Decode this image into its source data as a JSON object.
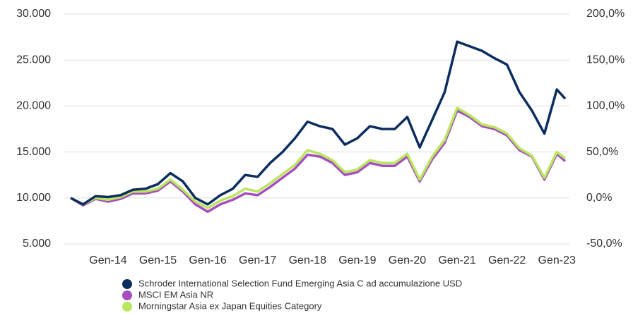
{
  "chart_data": {
    "type": "line",
    "x": [
      "2013-04",
      "2013-07",
      "2013-10",
      "2014-01",
      "2014-04",
      "2014-07",
      "2014-10",
      "2015-01",
      "2015-04",
      "2015-07",
      "2015-10",
      "2016-01",
      "2016-04",
      "2016-07",
      "2016-10",
      "2017-01",
      "2017-04",
      "2017-07",
      "2017-10",
      "2018-01",
      "2018-04",
      "2018-07",
      "2018-10",
      "2019-01",
      "2019-04",
      "2019-07",
      "2019-10",
      "2020-01",
      "2020-04",
      "2020-07",
      "2020-10",
      "2021-01",
      "2021-04",
      "2021-07",
      "2021-10",
      "2022-01",
      "2022-04",
      "2022-07",
      "2022-10",
      "2023-01",
      "2023-03"
    ],
    "series": [
      {
        "name": "Schroder International Selection Fund Emerging Asia C ad accumulazione USD",
        "color": "#0b2d5e",
        "values": [
          10000,
          9300,
          10200,
          10100,
          10300,
          10900,
          11000,
          11500,
          12700,
          11800,
          10000,
          9300,
          10300,
          11000,
          12500,
          12300,
          13800,
          15000,
          16500,
          18300,
          17800,
          17500,
          15800,
          16500,
          17800,
          17500,
          17500,
          18800,
          15500,
          18500,
          21500,
          27000,
          26500,
          26000,
          25200,
          24500,
          21500,
          19500,
          17000,
          21800,
          20800
        ]
      },
      {
        "name": "MSCI EM Asia NR",
        "color": "#a64ec0",
        "values": [
          10000,
          9200,
          9900,
          9600,
          9900,
          10500,
          10500,
          10800,
          11800,
          10700,
          9300,
          8500,
          9300,
          9800,
          10500,
          10300,
          11200,
          12200,
          13200,
          14700,
          14500,
          13800,
          12500,
          12800,
          13800,
          13500,
          13500,
          14500,
          11800,
          14200,
          16000,
          19500,
          18800,
          17800,
          17500,
          16800,
          15200,
          14500,
          12000,
          14800,
          14000
        ]
      },
      {
        "name": "Morningstar Asia ex Japan Equities Category",
        "color": "#b9e65c",
        "values": [
          10000,
          9300,
          10000,
          9800,
          10100,
          10700,
          10700,
          11000,
          12000,
          10900,
          9600,
          8900,
          9700,
          10200,
          11000,
          10700,
          11600,
          12600,
          13600,
          15200,
          14800,
          14100,
          12800,
          13100,
          14100,
          13800,
          13800,
          14800,
          12000,
          14500,
          16300,
          19800,
          19000,
          18000,
          17700,
          17000,
          15400,
          14600,
          12200,
          15000,
          14300
        ]
      }
    ],
    "xlim": [
      "2013-04",
      "2023-03"
    ],
    "xticks": [
      {
        "value": "2014-01",
        "label": "Gen-14"
      },
      {
        "value": "2015-01",
        "label": "Gen-15"
      },
      {
        "value": "2016-01",
        "label": "Gen-16"
      },
      {
        "value": "2017-01",
        "label": "Gen-17"
      },
      {
        "value": "2018-01",
        "label": "Gen-18"
      },
      {
        "value": "2019-01",
        "label": "Gen-19"
      },
      {
        "value": "2020-01",
        "label": "Gen-20"
      },
      {
        "value": "2021-01",
        "label": "Gen-21"
      },
      {
        "value": "2022-01",
        "label": "Gen-22"
      },
      {
        "value": "2023-01",
        "label": "Gen-23"
      }
    ],
    "ylim": [
      5000,
      30000
    ],
    "yticks": [
      {
        "value": 5000,
        "label": "5.000"
      },
      {
        "value": 10000,
        "label": "10.000"
      },
      {
        "value": 15000,
        "label": "15.000"
      },
      {
        "value": 20000,
        "label": "20.000"
      },
      {
        "value": 25000,
        "label": "25.000"
      },
      {
        "value": 30000,
        "label": "30.000"
      }
    ],
    "y2lim": [
      -50,
      200
    ],
    "y2ticks": [
      {
        "value": -50,
        "label": "-50,0%"
      },
      {
        "value": 0,
        "label": "0,0%"
      },
      {
        "value": 50,
        "label": "50,0%"
      },
      {
        "value": 100,
        "label": "100,0%"
      },
      {
        "value": 150,
        "label": "150,0%"
      },
      {
        "value": 200,
        "label": "200,0%"
      }
    ],
    "grid": true
  }
}
